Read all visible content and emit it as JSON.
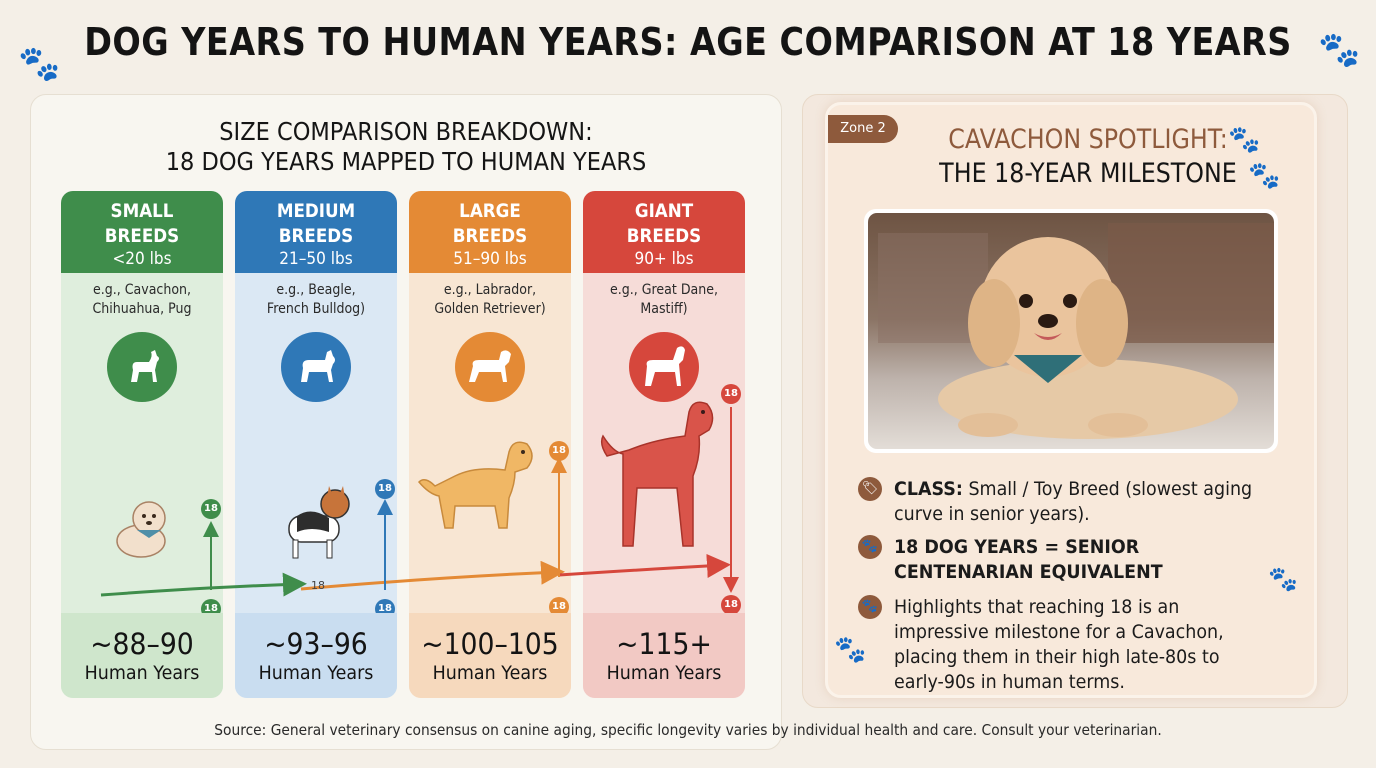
{
  "title": "DOG YEARS TO HUMAN YEARS: AGE COMPARISON AT 18 YEARS",
  "section": {
    "title_line1": "SIZE COMPARISON BREAKDOWN:",
    "title_line2": "18 DOG YEARS MAPPED TO HUMAN YEARS"
  },
  "columns": [
    {
      "name_line1": "SMALL",
      "name_line2": "BREEDS",
      "weight": "<20 lbs",
      "examples_line1": "e.g., Cavachon,",
      "examples_line2": "Chihuahua, Pug",
      "age": "~88–90",
      "unit": "Human Years",
      "marker": "18",
      "color": "#3f8d4b",
      "bg": "#dfeedd",
      "footer_bg": "#cfe6cc"
    },
    {
      "name_line1": "MEDIUM",
      "name_line2": "BREEDS",
      "weight": "21–50 lbs",
      "examples_line1": "e.g., Beagle,",
      "examples_line2": "French Bulldog)",
      "age": "~93–96",
      "unit": "Human Years",
      "marker": "18",
      "color": "#2f78b7",
      "bg": "#dbe8f4",
      "footer_bg": "#c9ddf0"
    },
    {
      "name_line1": "LARGE",
      "name_line2": "BREEDS",
      "weight": "51–90 lbs",
      "examples_line1": "e.g., Labrador,",
      "examples_line2": "Golden Retriever)",
      "age": "~100–105",
      "unit": "Human Years",
      "marker": "18",
      "color": "#e48a35",
      "bg": "#f8e6d3",
      "footer_bg": "#f6d9bd"
    },
    {
      "name_line1": "GIANT",
      "name_line2": "BREEDS",
      "weight": "90+ lbs",
      "examples_line1": "e.g., Great Dane,",
      "examples_line2": "Mastiff)",
      "age": "~115+",
      "unit": "Human Years",
      "marker": "18",
      "color": "#d6473c",
      "bg": "#f6dcd8",
      "footer_bg": "#f2c9c4"
    }
  ],
  "timeline_label": "18",
  "source": "Source: General veterinary consensus on canine aging, specific longevity varies by individual health and care. Consult your veterinarian.",
  "spotlight": {
    "zone_tag": "Zone 2",
    "title_line1": "CAVACHON SPOTLIGHT:",
    "title_line2": "THE 18-YEAR MILESTONE",
    "bullets": [
      {
        "icon": "paw-tag-icon",
        "label": "CLASS:",
        "text": " Small / Toy Breed (slowest aging curve in senior years)."
      },
      {
        "icon": "paw-icon",
        "label": "18 DOG YEARS = SENIOR CENTENARIAN EQUIVALENT",
        "text": ""
      },
      {
        "icon": "paw-icon",
        "label": "",
        "text": "Highlights that reaching 18 is an impressive milestone for a Cavachon, placing them in their high late-80s to early-90s in human terms."
      }
    ]
  }
}
